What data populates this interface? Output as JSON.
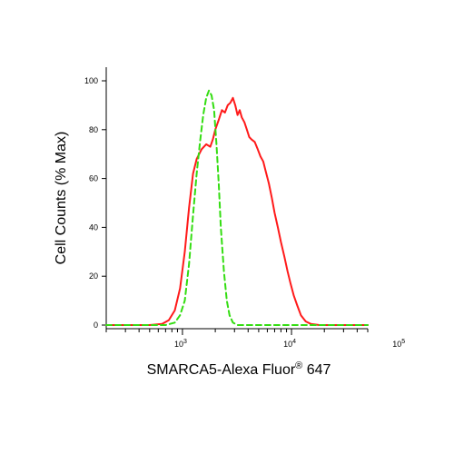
{
  "chart_data": {
    "type": "line",
    "title": "",
    "xlabel": "SMARCA5-Alexa Fluor",
    "xlabel_superscript": "®",
    "xlabel_suffix": " 647",
    "ylabel": "Cell Counts (% Max)",
    "x_scale": "log",
    "xlim": [
      200,
      50000
    ],
    "ylim": [
      0,
      100
    ],
    "y_ticks": [
      "0",
      "20",
      "40",
      "60",
      "80",
      "100"
    ],
    "x_ticks": [
      {
        "value": 1000,
        "base": "10",
        "exp": "3"
      },
      {
        "value": 10000,
        "base": "10",
        "exp": "4"
      },
      {
        "value": 100000,
        "base": "10",
        "exp": "5"
      }
    ],
    "grid": false,
    "series": [
      {
        "color": "#ff1a1a",
        "dash": "solid",
        "points": [
          [
            200,
            0
          ],
          [
            500,
            0
          ],
          [
            650,
            0.5
          ],
          [
            750,
            2
          ],
          [
            850,
            6
          ],
          [
            950,
            15
          ],
          [
            1050,
            30
          ],
          [
            1150,
            48
          ],
          [
            1250,
            62
          ],
          [
            1350,
            68
          ],
          [
            1500,
            72
          ],
          [
            1650,
            74
          ],
          [
            1800,
            73
          ],
          [
            1900,
            76
          ],
          [
            2000,
            80
          ],
          [
            2150,
            84
          ],
          [
            2300,
            88
          ],
          [
            2450,
            87
          ],
          [
            2600,
            90
          ],
          [
            2750,
            91
          ],
          [
            2900,
            93
          ],
          [
            3050,
            90
          ],
          [
            3200,
            86
          ],
          [
            3350,
            88
          ],
          [
            3500,
            85
          ],
          [
            3700,
            83
          ],
          [
            3900,
            80
          ],
          [
            4100,
            77
          ],
          [
            4300,
            76
          ],
          [
            4600,
            75
          ],
          [
            4900,
            72
          ],
          [
            5200,
            69
          ],
          [
            5500,
            67
          ],
          [
            5800,
            63
          ],
          [
            6200,
            58
          ],
          [
            6600,
            52
          ],
          [
            7000,
            46
          ],
          [
            7500,
            40
          ],
          [
            8000,
            34
          ],
          [
            8600,
            28
          ],
          [
            9200,
            22
          ],
          [
            9800,
            17
          ],
          [
            10500,
            12
          ],
          [
            11300,
            8
          ],
          [
            12200,
            4
          ],
          [
            13500,
            1.5
          ],
          [
            15000,
            0.5
          ],
          [
            18000,
            0
          ],
          [
            50000,
            0
          ]
        ]
      },
      {
        "color": "#33dd11",
        "dash": "dashed",
        "points": [
          [
            200,
            0
          ],
          [
            700,
            0
          ],
          [
            850,
            1
          ],
          [
            950,
            4
          ],
          [
            1050,
            10
          ],
          [
            1150,
            25
          ],
          [
            1250,
            45
          ],
          [
            1350,
            62
          ],
          [
            1450,
            75
          ],
          [
            1550,
            86
          ],
          [
            1650,
            93
          ],
          [
            1750,
            96
          ],
          [
            1850,
            94
          ],
          [
            1950,
            88
          ],
          [
            2050,
            74
          ],
          [
            2150,
            58
          ],
          [
            2250,
            40
          ],
          [
            2400,
            22
          ],
          [
            2550,
            10
          ],
          [
            2700,
            4
          ],
          [
            2900,
            1
          ],
          [
            3200,
            0
          ],
          [
            50000,
            0
          ]
        ]
      }
    ]
  }
}
